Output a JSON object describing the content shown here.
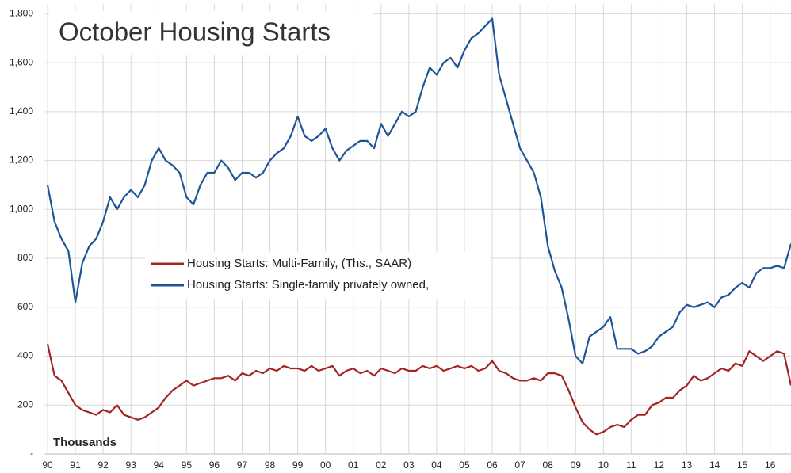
{
  "chart_data": {
    "type": "line",
    "title": "October Housing Starts",
    "annotation": "Thousands",
    "x": [
      1990,
      1990.25,
      1990.5,
      1990.75,
      1991,
      1991.25,
      1991.5,
      1991.75,
      1992,
      1992.25,
      1992.5,
      1992.75,
      1993,
      1993.25,
      1993.5,
      1993.75,
      1994,
      1994.25,
      1994.5,
      1994.75,
      1995,
      1995.25,
      1995.5,
      1995.75,
      1996,
      1996.25,
      1996.5,
      1996.75,
      1997,
      1997.25,
      1997.5,
      1997.75,
      1998,
      1998.25,
      1998.5,
      1998.75,
      1999,
      1999.25,
      1999.5,
      1999.75,
      2000,
      2000.25,
      2000.5,
      2000.75,
      2001,
      2001.25,
      2001.5,
      2001.75,
      2002,
      2002.25,
      2002.5,
      2002.75,
      2003,
      2003.25,
      2003.5,
      2003.75,
      2004,
      2004.25,
      2004.5,
      2004.75,
      2005,
      2005.25,
      2005.5,
      2005.75,
      2006,
      2006.25,
      2006.5,
      2006.75,
      2007,
      2007.25,
      2007.5,
      2007.75,
      2008,
      2008.25,
      2008.5,
      2008.75,
      2009,
      2009.25,
      2009.5,
      2009.75,
      2010,
      2010.25,
      2010.5,
      2010.75,
      2011,
      2011.25,
      2011.5,
      2011.75,
      2012,
      2012.25,
      2012.5,
      2012.75,
      2013,
      2013.25,
      2013.5,
      2013.75,
      2014,
      2014.25,
      2014.5,
      2014.75,
      2015,
      2015.25,
      2015.5,
      2015.75,
      2016,
      2016.25,
      2016.5,
      2016.75
    ],
    "series": [
      {
        "name": "Housing Starts: Multi-Family, (Ths., SAAR)",
        "color": "#a32424",
        "values": [
          450,
          320,
          300,
          250,
          200,
          180,
          170,
          160,
          180,
          170,
          200,
          160,
          150,
          140,
          150,
          170,
          190,
          230,
          260,
          280,
          300,
          280,
          290,
          300,
          310,
          310,
          320,
          300,
          330,
          320,
          340,
          330,
          350,
          340,
          360,
          350,
          350,
          340,
          360,
          340,
          350,
          360,
          320,
          340,
          350,
          330,
          340,
          320,
          350,
          340,
          330,
          350,
          340,
          340,
          360,
          350,
          360,
          340,
          350,
          360,
          350,
          360,
          340,
          350,
          380,
          340,
          330,
          310,
          300,
          300,
          310,
          300,
          330,
          330,
          320,
          260,
          190,
          130,
          100,
          80,
          90,
          110,
          120,
          110,
          140,
          160,
          160,
          200,
          210,
          230,
          230,
          260,
          280,
          320,
          300,
          310,
          330,
          350,
          340,
          370,
          360,
          420,
          400,
          380,
          400,
          420,
          410,
          280
        ]
      },
      {
        "name": "Housing Starts: Single-family privately owned,",
        "color": "#1f5597",
        "values": [
          1100,
          950,
          880,
          830,
          620,
          780,
          850,
          880,
          950,
          1050,
          1000,
          1050,
          1080,
          1050,
          1100,
          1200,
          1250,
          1200,
          1180,
          1150,
          1050,
          1020,
          1100,
          1150,
          1150,
          1200,
          1170,
          1120,
          1150,
          1150,
          1130,
          1150,
          1200,
          1230,
          1250,
          1300,
          1380,
          1300,
          1280,
          1300,
          1330,
          1250,
          1200,
          1240,
          1260,
          1280,
          1280,
          1250,
          1350,
          1300,
          1350,
          1400,
          1380,
          1400,
          1500,
          1580,
          1550,
          1600,
          1620,
          1580,
          1650,
          1700,
          1720,
          1750,
          1780,
          1550,
          1450,
          1350,
          1250,
          1200,
          1150,
          1050,
          850,
          750,
          680,
          550,
          400,
          370,
          480,
          500,
          520,
          560,
          430,
          430,
          430,
          410,
          420,
          440,
          480,
          500,
          520,
          580,
          610,
          600,
          610,
          620,
          600,
          640,
          650,
          680,
          700,
          680,
          740,
          760,
          760,
          770,
          760,
          860
        ]
      }
    ],
    "xlim": [
      1989.9,
      2016.75
    ],
    "xticks": [
      {
        "value": 1990,
        "label": "90"
      },
      {
        "value": 1991,
        "label": "91"
      },
      {
        "value": 1992,
        "label": "92"
      },
      {
        "value": 1993,
        "label": "93"
      },
      {
        "value": 1994,
        "label": "94"
      },
      {
        "value": 1995,
        "label": "95"
      },
      {
        "value": 1996,
        "label": "96"
      },
      {
        "value": 1997,
        "label": "97"
      },
      {
        "value": 1998,
        "label": "98"
      },
      {
        "value": 1999,
        "label": "99"
      },
      {
        "value": 2000,
        "label": "00"
      },
      {
        "value": 2001,
        "label": "01"
      },
      {
        "value": 2002,
        "label": "02"
      },
      {
        "value": 2003,
        "label": "03"
      },
      {
        "value": 2004,
        "label": "04"
      },
      {
        "value": 2005,
        "label": "05"
      },
      {
        "value": 2006,
        "label": "06"
      },
      {
        "value": 2007,
        "label": "07"
      },
      {
        "value": 2008,
        "label": "08"
      },
      {
        "value": 2009,
        "label": "09"
      },
      {
        "value": 2010,
        "label": "10"
      },
      {
        "value": 2011,
        "label": "11"
      },
      {
        "value": 2012,
        "label": "12"
      },
      {
        "value": 2013,
        "label": "13"
      },
      {
        "value": 2014,
        "label": "14"
      },
      {
        "value": 2015,
        "label": "15"
      },
      {
        "value": 2016,
        "label": "16"
      }
    ],
    "ylim": [
      0,
      1840
    ],
    "yticks": [
      {
        "value": 0,
        "label": "-"
      },
      200,
      400,
      600,
      800,
      {
        "value": 1000,
        "label": "1,000"
      },
      {
        "value": 1200,
        "label": "1,200"
      },
      {
        "value": 1400,
        "label": "1,400"
      },
      {
        "value": 1600,
        "label": "1,600"
      },
      {
        "value": 1800,
        "label": "1,800"
      }
    ],
    "grid": true
  }
}
